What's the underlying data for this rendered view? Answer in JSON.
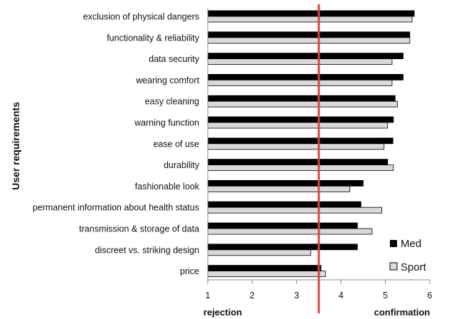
{
  "chart_data": {
    "type": "bar",
    "orientation": "horizontal",
    "ylabel": "User requirements",
    "xlabel_left": "rejection",
    "xlabel_right": "confirmation",
    "xlim": [
      1,
      6
    ],
    "xticks": [
      "1",
      "2",
      "3",
      "4",
      "5",
      "6"
    ],
    "grid": false,
    "legend_position": "bottom-right",
    "reference_line": {
      "value": 3.5,
      "color": "#d9463b"
    },
    "categories": [
      "exclusion of physical dangers",
      "functionality & reliability",
      "data security",
      "wearing comfort",
      "easy cleaning",
      "warning function",
      "ease of use",
      "durability",
      "fashionable look",
      "permanent information about health status",
      "transmission & storage of data",
      "discreet vs. striking design",
      "price"
    ],
    "series": [
      {
        "name": "Med",
        "color": "#000000",
        "values": [
          5.65,
          5.55,
          5.4,
          5.4,
          5.22,
          5.18,
          5.17,
          5.05,
          4.5,
          4.45,
          4.37,
          4.37,
          3.55
        ]
      },
      {
        "name": "Sport",
        "color": "#d9d9d9",
        "values": [
          5.6,
          5.55,
          5.15,
          5.15,
          5.27,
          5.05,
          4.97,
          5.18,
          4.2,
          4.92,
          4.7,
          3.32,
          3.65
        ]
      }
    ]
  }
}
